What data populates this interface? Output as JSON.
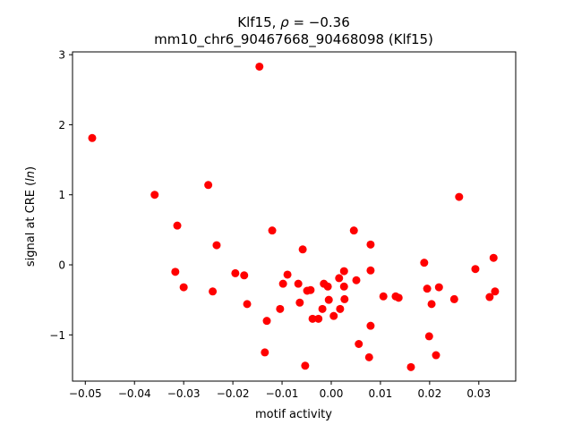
{
  "chart_data": {
    "type": "scatter",
    "title_line1_prefix": "Klf15, ",
    "title_rho_symbol": "ρ",
    "title_rho_value": " = −0.36",
    "title_line2": "mm10_chr6_90467668_90468098 (Klf15)",
    "xlabel": "motif activity",
    "ylabel_prefix": "signal at CRE (",
    "ylabel_italic": "ln",
    "ylabel_suffix": ")",
    "xlim": [
      -0.0526,
      0.0375
    ],
    "ylim": [
      -1.66,
      3.04
    ],
    "xticks": [
      -0.05,
      -0.04,
      -0.03,
      -0.02,
      -0.01,
      0.0,
      0.01,
      0.02,
      0.03
    ],
    "xtick_labels": [
      "−0.05",
      "−0.04",
      "−0.03",
      "−0.02",
      "−0.01",
      "0.00",
      "0.01",
      "0.02",
      "0.03"
    ],
    "yticks": [
      -1,
      0,
      1,
      2,
      3
    ],
    "ytick_labels": [
      "−1",
      "0",
      "1",
      "2",
      "3"
    ],
    "marker_color": "#ff0000",
    "grid": false,
    "points": [
      [
        -0.0486,
        1.81
      ],
      [
        -0.0146,
        2.83
      ],
      [
        -0.0359,
        1.0
      ],
      [
        -0.025,
        1.14
      ],
      [
        -0.0313,
        0.56
      ],
      [
        -0.0233,
        0.28
      ],
      [
        -0.0317,
        -0.1
      ],
      [
        -0.03,
        -0.32
      ],
      [
        -0.0241,
        -0.38
      ],
      [
        -0.0195,
        -0.12
      ],
      [
        -0.0177,
        -0.15
      ],
      [
        -0.0171,
        -0.56
      ],
      [
        -0.012,
        0.49
      ],
      [
        -0.0131,
        -0.8
      ],
      [
        -0.0135,
        -1.25
      ],
      [
        -0.0104,
        -0.63
      ],
      [
        -0.0098,
        -0.27
      ],
      [
        -0.0089,
        -0.14
      ],
      [
        -0.0067,
        -0.27
      ],
      [
        -0.0058,
        0.22
      ],
      [
        -0.0064,
        -0.54
      ],
      [
        -0.0049,
        -0.37
      ],
      [
        -0.0042,
        -0.36
      ],
      [
        -0.0053,
        -1.44
      ],
      [
        -0.0038,
        -0.77
      ],
      [
        -0.0026,
        -0.77
      ],
      [
        -0.0018,
        -0.63
      ],
      [
        -0.0015,
        -0.27
      ],
      [
        -0.0007,
        -0.31
      ],
      [
        -0.0005,
        -0.5
      ],
      [
        0.0005,
        -0.73
      ],
      [
        0.0016,
        -0.19
      ],
      [
        0.0018,
        -0.63
      ],
      [
        0.0026,
        -0.09
      ],
      [
        0.0026,
        -0.31
      ],
      [
        0.0027,
        -0.49
      ],
      [
        0.0046,
        0.49
      ],
      [
        0.0051,
        -0.22
      ],
      [
        0.0056,
        -1.13
      ],
      [
        0.008,
        0.29
      ],
      [
        0.008,
        -0.08
      ],
      [
        0.008,
        -0.87
      ],
      [
        0.0077,
        -1.32
      ],
      [
        0.0106,
        -0.45
      ],
      [
        0.0131,
        -0.45
      ],
      [
        0.0137,
        -0.47
      ],
      [
        0.0162,
        -1.46
      ],
      [
        0.0189,
        0.03
      ],
      [
        0.0195,
        -0.34
      ],
      [
        0.0199,
        -1.02
      ],
      [
        0.0204,
        -0.56
      ],
      [
        0.0213,
        -1.29
      ],
      [
        0.0219,
        -0.32
      ],
      [
        0.025,
        -0.49
      ],
      [
        0.026,
        0.97
      ],
      [
        0.0293,
        -0.06
      ],
      [
        0.0322,
        -0.46
      ],
      [
        0.033,
        0.1
      ],
      [
        0.0333,
        -0.38
      ]
    ]
  }
}
